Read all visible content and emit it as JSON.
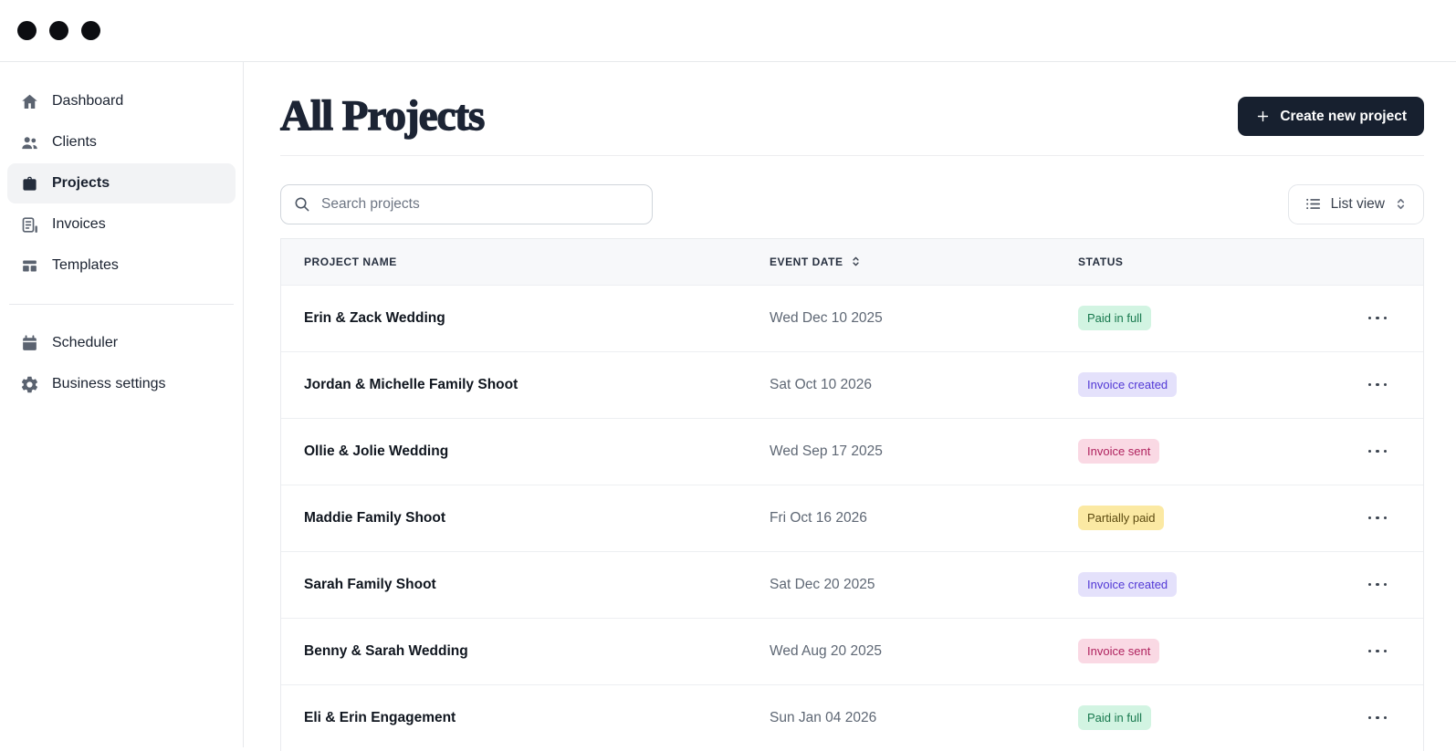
{
  "window": {
    "controls": [
      "dot",
      "dot",
      "dot"
    ]
  },
  "sidebar": {
    "items": [
      {
        "label": "Dashboard",
        "icon": "home-icon",
        "active": false
      },
      {
        "label": "Clients",
        "icon": "users-icon",
        "active": false
      },
      {
        "label": "Projects",
        "icon": "briefcase-icon",
        "active": true
      },
      {
        "label": "Invoices",
        "icon": "invoice-icon",
        "active": false
      },
      {
        "label": "Templates",
        "icon": "templates-icon",
        "active": false
      }
    ],
    "secondary_items": [
      {
        "label": "Scheduler",
        "icon": "calendar-icon",
        "active": false
      },
      {
        "label": "Business settings",
        "icon": "gear-icon",
        "active": false
      }
    ]
  },
  "header": {
    "title": "All Projects",
    "create_button_label": "Create new project",
    "create_button_icon": "plus-icon"
  },
  "toolbar": {
    "search_placeholder": "Search projects",
    "search_value": "",
    "view_select_label": "List view"
  },
  "table": {
    "columns": [
      "Project name",
      "Event date",
      "Status"
    ],
    "sorted_column": "Event date",
    "rows": [
      {
        "name": "Erin & Zack Wedding",
        "date": "Wed Dec 10 2025",
        "status": "Paid in full",
        "status_key": "paid"
      },
      {
        "name": "Jordan & Michelle Family Shoot",
        "date": "Sat Oct 10 2026",
        "status": "Invoice created",
        "status_key": "created"
      },
      {
        "name": "Ollie & Jolie Wedding",
        "date": "Wed Sep 17 2025",
        "status": "Invoice sent",
        "status_key": "sent"
      },
      {
        "name": "Maddie Family Shoot",
        "date": "Fri Oct 16 2026",
        "status": "Partially paid",
        "status_key": "partial"
      },
      {
        "name": "Sarah Family Shoot",
        "date": "Sat Dec 20 2025",
        "status": "Invoice created",
        "status_key": "created"
      },
      {
        "name": "Benny & Sarah Wedding",
        "date": "Wed Aug 20 2025",
        "status": "Invoice sent",
        "status_key": "sent"
      },
      {
        "name": "Eli & Erin Engagement",
        "date": "Sun Jan 04 2026",
        "status": "Paid in full",
        "status_key": "paid"
      }
    ]
  },
  "status_styles": {
    "paid": {
      "bg": "#d2f4e2",
      "text": "#18794e"
    },
    "created": {
      "bg": "#e4e1fb",
      "text": "#5138d5"
    },
    "sent": {
      "bg": "#fad9e4",
      "text": "#b0235f"
    },
    "partial": {
      "bg": "#fbe9a3",
      "text": "#5c4a10"
    }
  },
  "colors": {
    "accent_dark": "#17202f",
    "title": "#1c2434",
    "header_bg": "#f7f8fa",
    "divider": "#edeff2"
  },
  "actions_icon": "ellipsis-icon"
}
